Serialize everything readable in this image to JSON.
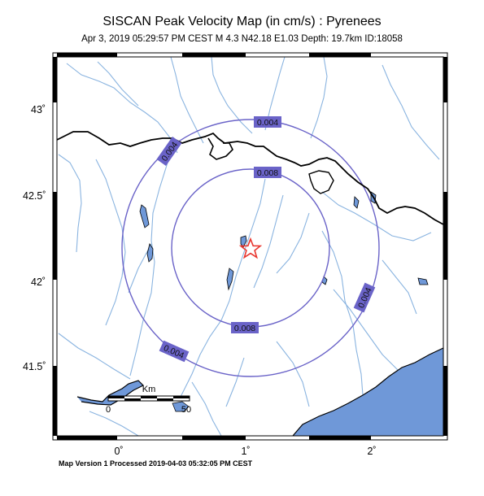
{
  "header": {
    "title": "SISCAN Peak Velocity Map (in cm/s) : Pyrenees",
    "event": "Apr  3, 2019 05:29:57 PM CEST   M 4.3   N42.18 E1.03   Depth: 19.7km   ID:18058"
  },
  "axes": {
    "lat_ticks": [
      "43˚",
      "42.5˚",
      "42˚",
      "41.5˚"
    ],
    "lon_ticks": [
      "0˚",
      "1˚",
      "2˚"
    ]
  },
  "contours": {
    "outer_label": "0.004",
    "inner_label": "0.008"
  },
  "scale_bar": {
    "unit": "Km",
    "start": "0",
    "end": "50"
  },
  "footer": {
    "text": "Map Version 1 Processed 2019-04-03 05:32:05 PM CEST"
  },
  "colors": {
    "sea": "#6f98d8",
    "rivers": "#8ab4e0",
    "contours": "#6a63c8",
    "label_bg": "#6a63c8",
    "epicenter": "#e8352e",
    "border": "#000000"
  },
  "epicenter_icon": "star-icon"
}
